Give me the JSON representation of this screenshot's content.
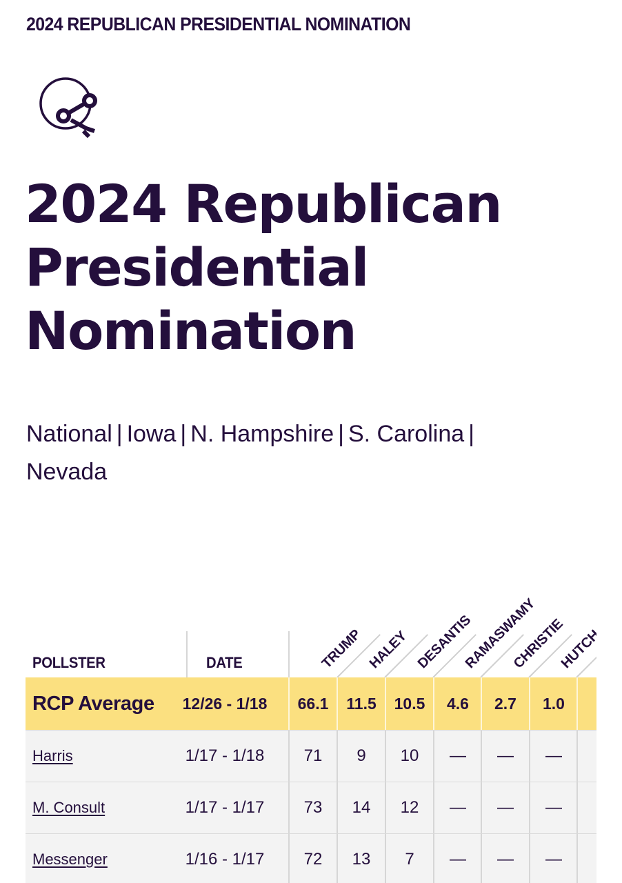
{
  "header": {
    "section_title": "2024 REPUBLICAN PRESIDENTIAL NOMINATION"
  },
  "logo": {
    "icon": "share-network-icon"
  },
  "title": {
    "line1": "2024 Republican",
    "line2": "Presidential",
    "line3": "Nomination"
  },
  "nav": {
    "links": [
      "National",
      "Iowa",
      "N. Hampshire",
      "S. Carolina",
      "Nevada"
    ],
    "separator": "|"
  },
  "table": {
    "headers": {
      "pollster": "POLLSTER",
      "date": "DATE"
    },
    "candidates": [
      "TRUMP",
      "HALEY",
      "DESANTIS",
      "RAMASWAMY",
      "CHRISTIE",
      "HUTCH"
    ],
    "average": {
      "pollster": "RCP Average",
      "date": "12/26 - 1/18",
      "values": [
        "66.1",
        "11.5",
        "10.5",
        "4.6",
        "2.7",
        "1.0"
      ]
    },
    "rows": [
      {
        "pollster": "Harris",
        "date": "1/17 - 1/18",
        "values": [
          "71",
          "9",
          "10",
          "—",
          "—",
          "—"
        ]
      },
      {
        "pollster": "M. Consult",
        "date": "1/17 - 1/17",
        "values": [
          "73",
          "14",
          "12",
          "—",
          "—",
          "—"
        ]
      },
      {
        "pollster": "Messenger",
        "date": "1/16 - 1/17",
        "values": [
          "72",
          "13",
          "7",
          "—",
          "—",
          "—"
        ]
      }
    ]
  },
  "colors": {
    "primary": "#240f3c",
    "average_row": "#fbe080",
    "row_bg": "#f3f3f3"
  }
}
